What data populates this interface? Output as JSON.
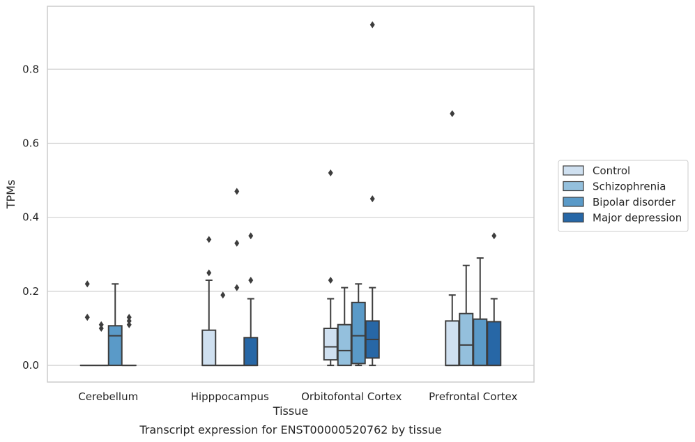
{
  "chart_data": {
    "type": "box",
    "xlabel": "Tissue",
    "ylabel": "TPMs",
    "caption": "Transcript expression for ENST00000520762 by tissue",
    "ylim": [
      -0.045,
      0.97
    ],
    "yticks": [
      0.0,
      0.2,
      0.4,
      0.6,
      0.8
    ],
    "ytick_labels": [
      "0.0",
      "0.2",
      "0.4",
      "0.6",
      "0.8"
    ],
    "grid": "horizontal",
    "legend_position": "right",
    "categories": [
      "Cerebellum",
      "Hipppocampus",
      "Orbitofontal Cortex",
      "Prefrontal Cortex"
    ],
    "series": [
      {
        "name": "Control",
        "color": "#cfe0f0",
        "boxes": [
          {
            "q1": 0.0,
            "median": 0.0,
            "q3": 0.0,
            "whislo": 0.0,
            "whishi": 0.0,
            "fliers": [
              0.22,
              0.13,
              0.13
            ]
          },
          {
            "q1": 0.0,
            "median": 0.0,
            "q3": 0.095,
            "whislo": 0.0,
            "whishi": 0.23,
            "fliers": [
              0.34,
              0.25
            ]
          },
          {
            "q1": 0.015,
            "median": 0.05,
            "q3": 0.1,
            "whislo": 0.0,
            "whishi": 0.18,
            "fliers": [
              0.52,
              0.23
            ]
          },
          {
            "q1": 0.0,
            "median": 0.0,
            "q3": 0.12,
            "whislo": 0.0,
            "whishi": 0.19,
            "fliers": [
              0.68
            ]
          }
        ]
      },
      {
        "name": "Schizophrenia",
        "color": "#94c0dd",
        "boxes": [
          {
            "q1": 0.0,
            "median": 0.0,
            "q3": 0.0,
            "whislo": 0.0,
            "whishi": 0.0,
            "fliers": [
              0.11,
              0.1
            ]
          },
          {
            "q1": 0.0,
            "median": 0.0,
            "q3": 0.0,
            "whislo": 0.0,
            "whishi": 0.0,
            "fliers": [
              0.19
            ]
          },
          {
            "q1": 0.0,
            "median": 0.04,
            "q3": 0.11,
            "whislo": 0.0,
            "whishi": 0.21,
            "fliers": []
          },
          {
            "q1": 0.0,
            "median": 0.055,
            "q3": 0.14,
            "whislo": 0.0,
            "whishi": 0.27,
            "fliers": []
          }
        ]
      },
      {
        "name": "Bipolar disorder",
        "color": "#5a9ac8",
        "boxes": [
          {
            "q1": 0.0,
            "median": 0.08,
            "q3": 0.107,
            "whislo": 0.0,
            "whishi": 0.22,
            "fliers": []
          },
          {
            "q1": 0.0,
            "median": 0.0,
            "q3": 0.0,
            "whislo": 0.0,
            "whishi": 0.0,
            "fliers": [
              0.47,
              0.33,
              0.21
            ]
          },
          {
            "q1": 0.005,
            "median": 0.08,
            "q3": 0.17,
            "whislo": 0.0,
            "whishi": 0.22,
            "fliers": []
          },
          {
            "q1": 0.0,
            "median": 0.0,
            "q3": 0.125,
            "whislo": 0.0,
            "whishi": 0.29,
            "fliers": []
          }
        ]
      },
      {
        "name": "Major depression",
        "color": "#2767a6",
        "boxes": [
          {
            "q1": 0.0,
            "median": 0.0,
            "q3": 0.0,
            "whislo": 0.0,
            "whishi": 0.0,
            "fliers": [
              0.13,
              0.12,
              0.11
            ]
          },
          {
            "q1": 0.0,
            "median": 0.0,
            "q3": 0.075,
            "whislo": 0.0,
            "whishi": 0.18,
            "fliers": [
              0.35,
              0.23
            ]
          },
          {
            "q1": 0.02,
            "median": 0.07,
            "q3": 0.12,
            "whislo": 0.0,
            "whishi": 0.21,
            "fliers": [
              0.92,
              0.45
            ]
          },
          {
            "q1": 0.0,
            "median": 0.0,
            "q3": 0.118,
            "whislo": 0.0,
            "whishi": 0.18,
            "fliers": [
              0.35
            ]
          }
        ]
      }
    ]
  }
}
